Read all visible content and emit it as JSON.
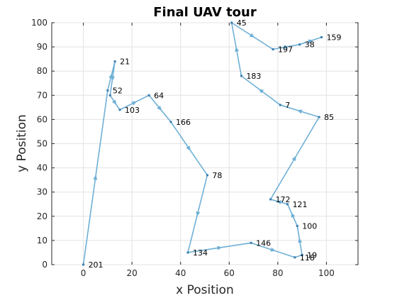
{
  "chart_data": {
    "type": "line",
    "title": "Final UAV tour",
    "xlabel": "x Position",
    "ylabel": "y Position",
    "xlim": [
      -13,
      113
    ],
    "ylim": [
      0,
      100
    ],
    "xticks": [
      0,
      20,
      40,
      60,
      80,
      100
    ],
    "yticks": [
      0,
      10,
      20,
      30,
      40,
      50,
      60,
      70,
      80,
      90,
      100
    ],
    "grid": true,
    "line_color": "#6fb0d6",
    "node_color": "#3d7fb0",
    "tour": [
      {
        "label": "201",
        "x": 0,
        "y": 0
      },
      {
        "label": "52",
        "x": 10,
        "y": 72
      },
      {
        "label": "21",
        "x": 13,
        "y": 84
      },
      {
        "label": "",
        "x": 11,
        "y": 70
      },
      {
        "label": "103",
        "x": 15,
        "y": 64
      },
      {
        "label": "64",
        "x": 27,
        "y": 70
      },
      {
        "label": "166",
        "x": 36,
        "y": 59
      },
      {
        "label": "78",
        "x": 51,
        "y": 37
      },
      {
        "label": "134",
        "x": 43,
        "y": 5
      },
      {
        "label": "146",
        "x": 69,
        "y": 9
      },
      {
        "label": "118",
        "x": 87,
        "y": 3
      },
      {
        "label": "19",
        "x": 90,
        "y": 4
      },
      {
        "label": "100",
        "x": 88,
        "y": 16
      },
      {
        "label": "121",
        "x": 84,
        "y": 25
      },
      {
        "label": "172",
        "x": 77,
        "y": 27
      },
      {
        "label": "85",
        "x": 97,
        "y": 61
      },
      {
        "label": "7",
        "x": 81,
        "y": 66
      },
      {
        "label": "183",
        "x": 65,
        "y": 78
      },
      {
        "label": "45",
        "x": 61,
        "y": 100
      },
      {
        "label": "197",
        "x": 78,
        "y": 89
      },
      {
        "label": "38",
        "x": 89,
        "y": 91
      },
      {
        "label": "159",
        "x": 98,
        "y": 94
      }
    ]
  }
}
